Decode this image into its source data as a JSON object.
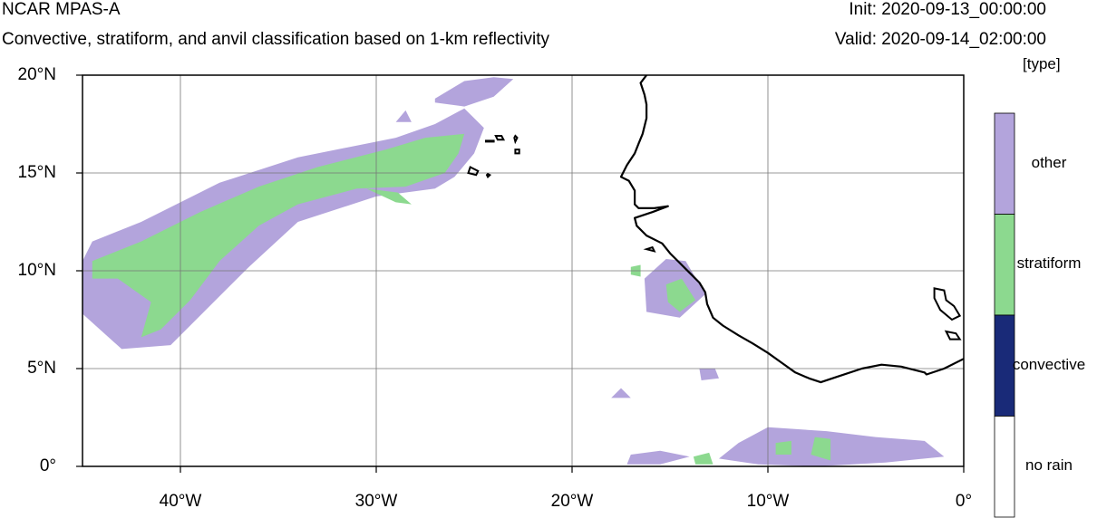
{
  "header": {
    "title": "NCAR MPAS-A",
    "subtitle": "Convective, stratiform, and anvil classification based on 1-km reflectivity",
    "init": "Init: 2020-09-13_00:00:00",
    "valid": "Valid: 2020-09-14_02:00:00",
    "units": "[type]"
  },
  "map": {
    "lon_range": [
      -45,
      0
    ],
    "lat_range": [
      0,
      20
    ],
    "grid": true,
    "lat_ticks": [
      {
        "value": 20,
        "label": "20°N"
      },
      {
        "value": 15,
        "label": "15°N"
      },
      {
        "value": 10,
        "label": "10°N"
      },
      {
        "value": 5,
        "label": "5°N"
      },
      {
        "value": 0,
        "label": "0°"
      }
    ],
    "lon_ticks": [
      {
        "value": -40,
        "label": "40°W"
      },
      {
        "value": -30,
        "label": "30°W"
      },
      {
        "value": -20,
        "label": "20°W"
      },
      {
        "value": -10,
        "label": "10°W"
      },
      {
        "value": 0,
        "label": "0°"
      }
    ],
    "colorbar": [
      {
        "label": "other",
        "color": "#b3a4dc"
      },
      {
        "label": "stratiform",
        "color": "#8cd98f"
      },
      {
        "label": "convective",
        "color": "#192a78"
      },
      {
        "label": "no rain",
        "color": "#ffffff"
      }
    ],
    "coastline": [
      [
        -16.2,
        20.0
      ],
      [
        -16.5,
        19.6
      ],
      [
        -16.3,
        19.0
      ],
      [
        -16.2,
        18.5
      ],
      [
        -16.2,
        17.8
      ],
      [
        -16.4,
        17.0
      ],
      [
        -16.6,
        16.5
      ],
      [
        -16.8,
        16.0
      ],
      [
        -17.2,
        15.4
      ],
      [
        -17.5,
        14.8
      ],
      [
        -17.1,
        14.6
      ],
      [
        -16.8,
        14.1
      ],
      [
        -16.8,
        13.4
      ],
      [
        -16.6,
        13.2
      ],
      [
        -15.8,
        13.2
      ],
      [
        -15.1,
        13.3
      ],
      [
        -15.9,
        13.0
      ],
      [
        -16.8,
        12.7
      ],
      [
        -16.7,
        12.3
      ],
      [
        -16.2,
        11.8
      ],
      [
        -15.4,
        11.4
      ],
      [
        -15.0,
        10.9
      ],
      [
        -14.5,
        10.4
      ],
      [
        -14.0,
        9.9
      ],
      [
        -13.5,
        9.4
      ],
      [
        -13.2,
        8.9
      ],
      [
        -13.1,
        8.3
      ],
      [
        -12.8,
        7.6
      ],
      [
        -12.3,
        7.2
      ],
      [
        -11.5,
        6.7
      ],
      [
        -10.8,
        6.3
      ],
      [
        -10.0,
        5.8
      ],
      [
        -9.3,
        5.3
      ],
      [
        -8.6,
        4.8
      ],
      [
        -7.9,
        4.5
      ],
      [
        -7.3,
        4.3
      ],
      [
        -6.4,
        4.6
      ],
      [
        -5.2,
        5.0
      ],
      [
        -4.2,
        5.2
      ],
      [
        -3.2,
        5.1
      ],
      [
        -2.0,
        4.8
      ],
      [
        -1.9,
        4.7
      ],
      [
        -1.0,
        5.0
      ],
      [
        0.0,
        5.5
      ]
    ],
    "islands": [
      [
        [
          -23.9,
          16.9
        ],
        [
          -23.6,
          16.9
        ],
        [
          -23.5,
          16.7
        ],
        [
          -23.8,
          16.7
        ],
        [
          -23.9,
          16.9
        ]
      ],
      [
        [
          -24.4,
          16.65
        ],
        [
          -24.0,
          16.65
        ],
        [
          -24.0,
          16.6
        ],
        [
          -24.4,
          16.6
        ],
        [
          -24.4,
          16.65
        ]
      ],
      [
        [
          -22.9,
          16.9
        ],
        [
          -22.8,
          16.8
        ],
        [
          -22.9,
          16.6
        ],
        [
          -22.95,
          16.8
        ],
        [
          -22.9,
          16.9
        ]
      ],
      [
        [
          -22.9,
          16.2
        ],
        [
          -22.7,
          16.2
        ],
        [
          -22.7,
          16.0
        ],
        [
          -22.9,
          16.0
        ],
        [
          -22.9,
          16.2
        ]
      ],
      [
        [
          -25.2,
          15.3
        ],
        [
          -24.8,
          15.1
        ],
        [
          -24.9,
          14.9
        ],
        [
          -25.3,
          15.0
        ],
        [
          -25.2,
          15.3
        ]
      ],
      [
        [
          -24.3,
          14.95
        ],
        [
          -24.2,
          14.9
        ],
        [
          -24.3,
          14.8
        ],
        [
          -24.35,
          14.9
        ],
        [
          -24.3,
          14.95
        ]
      ],
      [
        [
          -16.2,
          11.1
        ],
        [
          -15.9,
          11.2
        ],
        [
          -15.8,
          11.0
        ],
        -16.1,
        [
          -16.2,
          11.1
        ]
      ],
      [
        [
          -1.5,
          9.1
        ],
        [
          -1.0,
          9.0
        ],
        [
          -0.9,
          8.5
        ],
        [
          -0.5,
          8.2
        ],
        [
          -0.2,
          7.7
        ],
        [
          -0.6,
          7.5
        ],
        [
          -1.2,
          8.0
        ],
        [
          -1.5,
          8.6
        ],
        [
          -1.5,
          9.1
        ]
      ],
      [
        [
          -0.9,
          6.9
        ],
        [
          -0.4,
          6.8
        ],
        [
          -0.2,
          6.5
        ],
        [
          -0.7,
          6.5
        ],
        [
          -0.9,
          6.9
        ]
      ]
    ],
    "rain_regions": [
      {
        "type": "other",
        "poly": [
          [
            -44.5,
            11.5
          ],
          [
            -42,
            12.5
          ],
          [
            -38,
            14.5
          ],
          [
            -34,
            15.8
          ],
          [
            -29,
            16.8
          ],
          [
            -27,
            17.5
          ],
          [
            -25.5,
            18.3
          ],
          [
            -24.5,
            17.3
          ],
          [
            -25,
            16.0
          ],
          [
            -26,
            14.8
          ],
          [
            -27,
            14.2
          ],
          [
            -30,
            13.8
          ],
          [
            -34,
            12.5
          ],
          [
            -36.5,
            10.2
          ],
          [
            -38.5,
            8.2
          ],
          [
            -40.5,
            6.2
          ],
          [
            -43,
            6.0
          ],
          [
            -45,
            7.8
          ],
          [
            -45,
            10.5
          ]
        ]
      },
      {
        "type": "other",
        "poly": [
          [
            -27,
            18.8
          ],
          [
            -25.5,
            19.7
          ],
          [
            -24,
            19.9
          ],
          [
            -23,
            19.8
          ],
          [
            -24,
            18.9
          ],
          [
            -25.5,
            18.4
          ],
          [
            -27,
            18.6
          ]
        ]
      },
      {
        "type": "other",
        "poly": [
          [
            -29,
            17.6
          ],
          [
            -28.5,
            18.2
          ],
          [
            -28.2,
            17.6
          ]
        ]
      },
      {
        "type": "other",
        "poly": [
          [
            -18,
            3.5
          ],
          [
            -17.5,
            4.0
          ],
          [
            -17,
            3.5
          ]
        ]
      },
      {
        "type": "other",
        "poly": [
          [
            -15.2,
            10.6
          ],
          [
            -14.2,
            10.5
          ],
          [
            -13.2,
            8.8
          ],
          [
            -14.5,
            7.6
          ],
          [
            -16.2,
            7.9
          ],
          [
            -16.3,
            9.6
          ]
        ]
      },
      {
        "type": "other",
        "poly": [
          [
            -13.5,
            5.0
          ],
          [
            -12.7,
            5.0
          ],
          [
            -12.5,
            4.5
          ],
          [
            -13.4,
            4.4
          ]
        ]
      },
      {
        "type": "other",
        "poly": [
          [
            -10,
            2.0
          ],
          [
            -7.0,
            1.8
          ],
          [
            -4.5,
            1.5
          ],
          [
            -2.0,
            1.3
          ],
          [
            -1.0,
            0.5
          ],
          [
            -4.0,
            0.2
          ],
          [
            -7.5,
            0.0
          ],
          [
            -10.5,
            0.1
          ],
          [
            -12.5,
            0.4
          ],
          [
            -11.5,
            1.2
          ]
        ]
      },
      {
        "type": "other",
        "poly": [
          [
            -17,
            0.6
          ],
          [
            -15.5,
            0.8
          ],
          [
            -14,
            0.5
          ],
          [
            -15.5,
            0.1
          ],
          [
            -17.2,
            0.1
          ]
        ]
      },
      {
        "type": "stratiform",
        "poly": [
          [
            -44.5,
            10.5
          ],
          [
            -42,
            11.5
          ],
          [
            -39,
            13.0
          ],
          [
            -36,
            14.3
          ],
          [
            -33,
            15.3
          ],
          [
            -29.5,
            16.2
          ],
          [
            -27.5,
            16.8
          ],
          [
            -25.5,
            17.0
          ],
          [
            -25.8,
            16.0
          ],
          [
            -26.5,
            15.0
          ],
          [
            -28.5,
            14.3
          ],
          [
            -31,
            14.2
          ],
          [
            -34,
            13.4
          ],
          [
            -36,
            12.3
          ],
          [
            -38,
            10.5
          ],
          [
            -39.5,
            8.5
          ],
          [
            -41,
            7.0
          ],
          [
            -42,
            6.6
          ],
          [
            -41.5,
            8.4
          ],
          [
            -43.2,
            9.6
          ],
          [
            -44.5,
            9.6
          ]
        ]
      },
      {
        "type": "stratiform",
        "poly": [
          [
            -30.5,
            14.2
          ],
          [
            -29.0,
            13.5
          ],
          [
            -28.2,
            13.4
          ],
          [
            -28.9,
            14.0
          ]
        ]
      },
      {
        "type": "stratiform",
        "poly": [
          [
            -15.2,
            9.3
          ],
          [
            -14.4,
            9.6
          ],
          [
            -13.7,
            8.5
          ],
          [
            -14.5,
            7.9
          ],
          [
            -15.1,
            8.4
          ]
        ]
      },
      {
        "type": "stratiform",
        "poly": [
          [
            -17,
            10.2
          ],
          [
            -16.5,
            10.3
          ],
          [
            -16.5,
            9.7
          ],
          [
            -17,
            9.8
          ]
        ]
      },
      {
        "type": "stratiform",
        "poly": [
          [
            -7.6,
            1.5
          ],
          [
            -6.8,
            1.4
          ],
          [
            -6.8,
            0.3
          ],
          [
            -7.8,
            0.6
          ]
        ]
      },
      {
        "type": "stratiform",
        "poly": [
          [
            -9.6,
            1.2
          ],
          [
            -8.8,
            1.3
          ],
          [
            -8.8,
            0.6
          ],
          [
            -9.6,
            0.6
          ]
        ]
      },
      {
        "type": "stratiform",
        "poly": [
          [
            -13.8,
            0.5
          ],
          [
            -13.0,
            0.7
          ],
          [
            -12.8,
            0.1
          ],
          [
            -13.7,
            0.1
          ]
        ]
      }
    ]
  }
}
